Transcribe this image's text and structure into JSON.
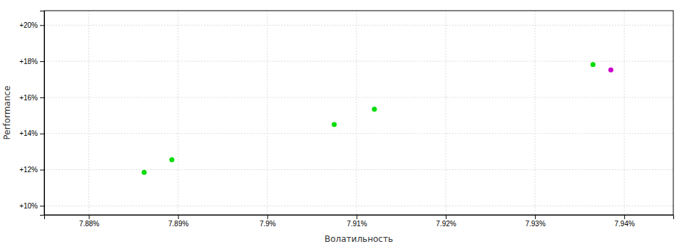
{
  "chart_data": {
    "type": "scatter",
    "x_label": "Волатильность",
    "y_label": "Performance",
    "x": [
      7.8862,
      7.8893,
      7.9075,
      7.912,
      7.9365,
      7.9385
    ],
    "values": [
      11.85,
      12.55,
      14.5,
      15.35,
      17.82,
      17.52
    ],
    "colors": [
      "#00dd00",
      "#00dd00",
      "#00dd00",
      "#00dd00",
      "#00dd00",
      "#cc00cc"
    ],
    "xlim": [
      7.875,
      7.9455
    ],
    "ylim": [
      9.5,
      20.8
    ],
    "xticks": [
      {
        "value": 7.88,
        "label": "7.88%"
      },
      {
        "value": 7.89,
        "label": "7.89%"
      },
      {
        "value": 7.9,
        "label": "7.9%"
      },
      {
        "value": 7.91,
        "label": "7.91%"
      },
      {
        "value": 7.92,
        "label": "7.92%"
      },
      {
        "value": 7.93,
        "label": "7.93%"
      },
      {
        "value": 7.94,
        "label": "7.94%"
      }
    ],
    "yticks": [
      {
        "value": 10,
        "label": "+10%"
      },
      {
        "value": 12,
        "label": "+12%"
      },
      {
        "value": 14,
        "label": "+14%"
      },
      {
        "value": 16,
        "label": "+16%"
      },
      {
        "value": 18,
        "label": "+18%"
      },
      {
        "value": 20,
        "label": "+20%"
      }
    ],
    "grid": true
  }
}
